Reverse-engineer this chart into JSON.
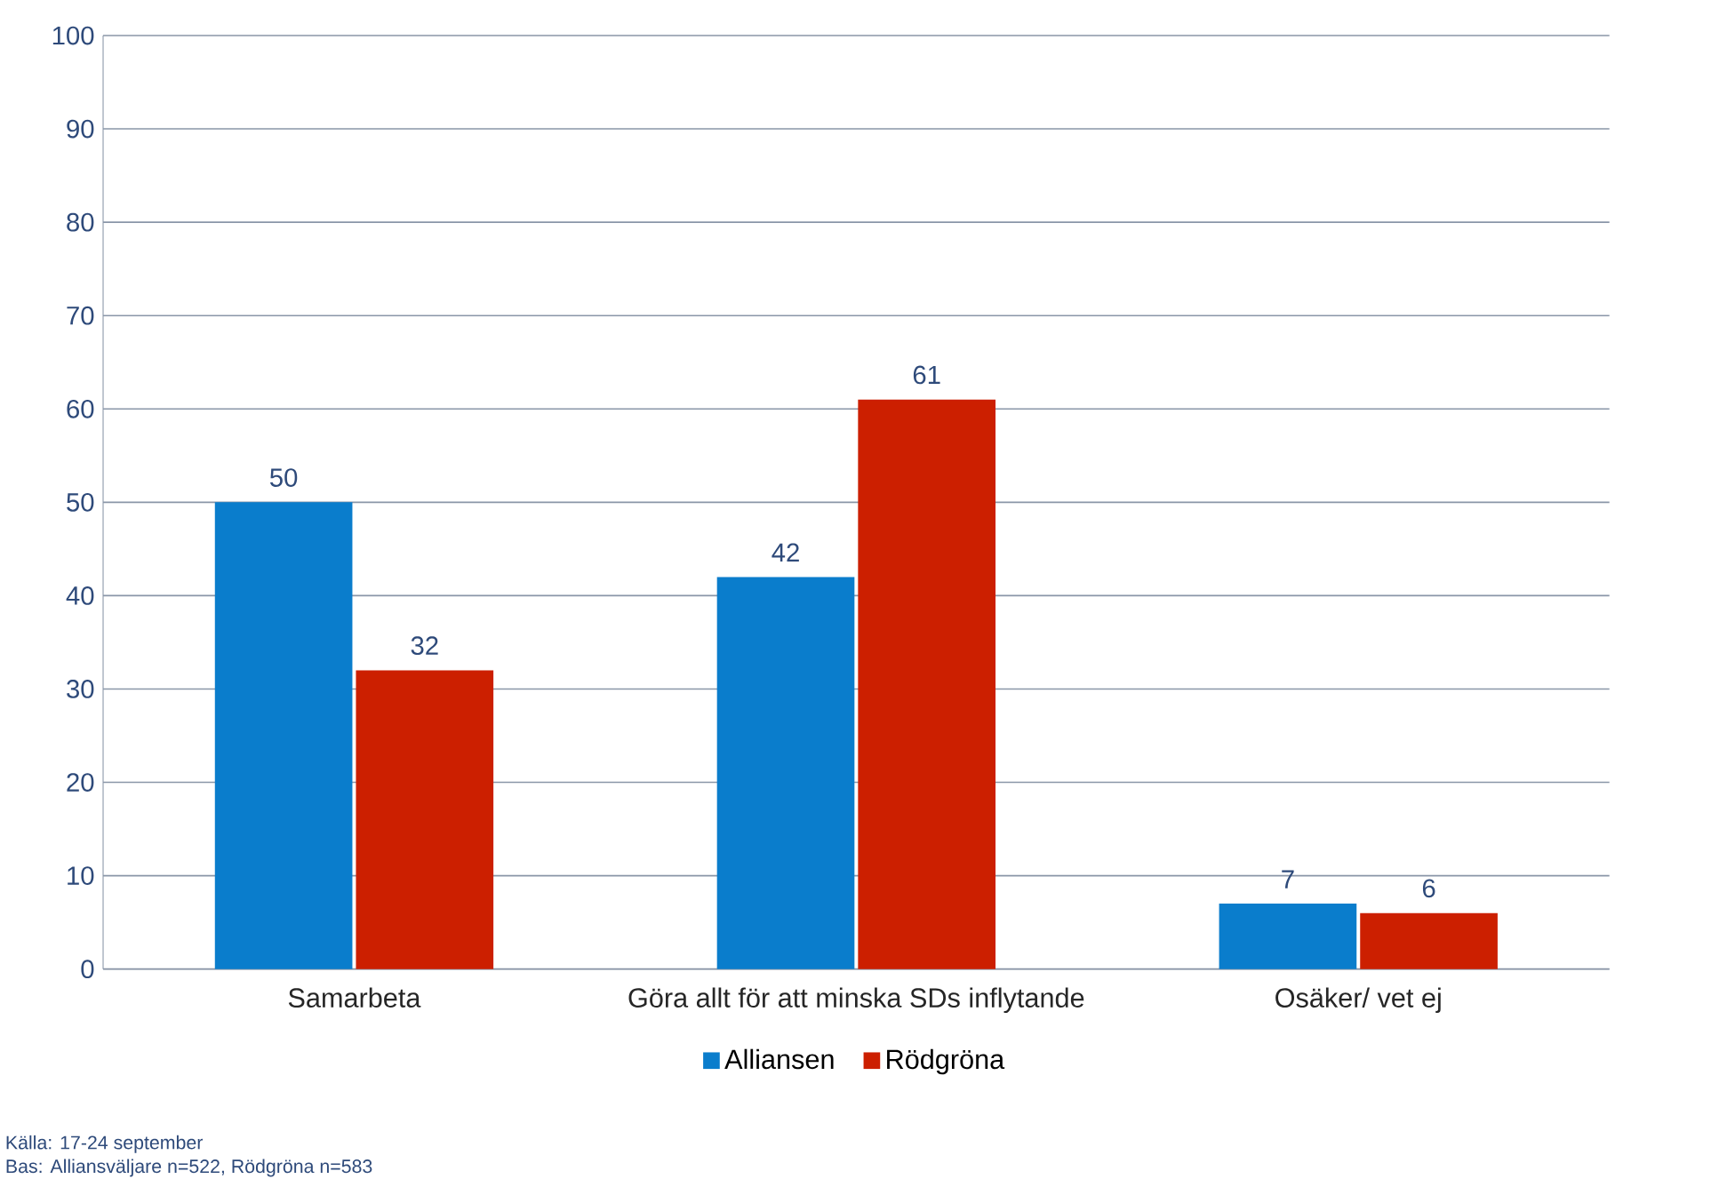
{
  "chart_data": {
    "type": "bar",
    "categories": [
      "Samarbeta",
      "Göra allt för att minska SDs inflytande",
      "Osäker/ vet ej"
    ],
    "series": [
      {
        "name": "Alliansen",
        "color": "#0a7dcc",
        "values": [
          50,
          42,
          7
        ]
      },
      {
        "name": "Rödgröna",
        "color": "#cc1f00",
        "values": [
          32,
          61,
          6
        ]
      }
    ],
    "ylim": [
      0,
      100
    ],
    "yticks": [
      0,
      10,
      20,
      30,
      40,
      50,
      60,
      70,
      80,
      90,
      100
    ],
    "grid": "y",
    "legend": "bottom",
    "data_labels": true,
    "annotations": [
      "Källa: 17-24 september",
      "Bas: Alliansväljare n=522, Rödgröna n=583"
    ]
  }
}
